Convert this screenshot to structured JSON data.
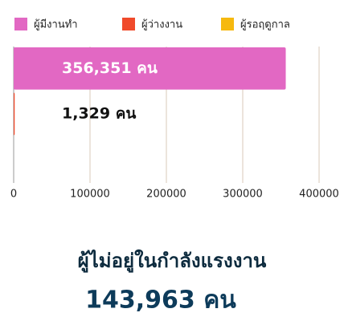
{
  "chart_data": {
    "type": "bar",
    "orientation": "horizontal",
    "series": [
      {
        "name": "ผู้มีงานทำ",
        "color": "#e268c3",
        "values": [
          356351
        ],
        "value_labels": [
          "356,351 คน"
        ]
      },
      {
        "name": "ผู้ว่างงาน",
        "color": "#f04a2b",
        "values": [
          1329
        ],
        "value_labels": [
          "1,329 คน"
        ]
      },
      {
        "name": "ผู้รอฤดูกาล",
        "color": "#f6b90f",
        "values": [
          0
        ]
      }
    ],
    "xlim": [
      0,
      400000
    ],
    "xticks": [
      0,
      100000,
      200000,
      300000,
      400000
    ],
    "grid": true,
    "legend": "top",
    "annotations": [
      "ผู้ไม่อยู่ในกำลังแรงงาน",
      "143,963 คน"
    ]
  }
}
